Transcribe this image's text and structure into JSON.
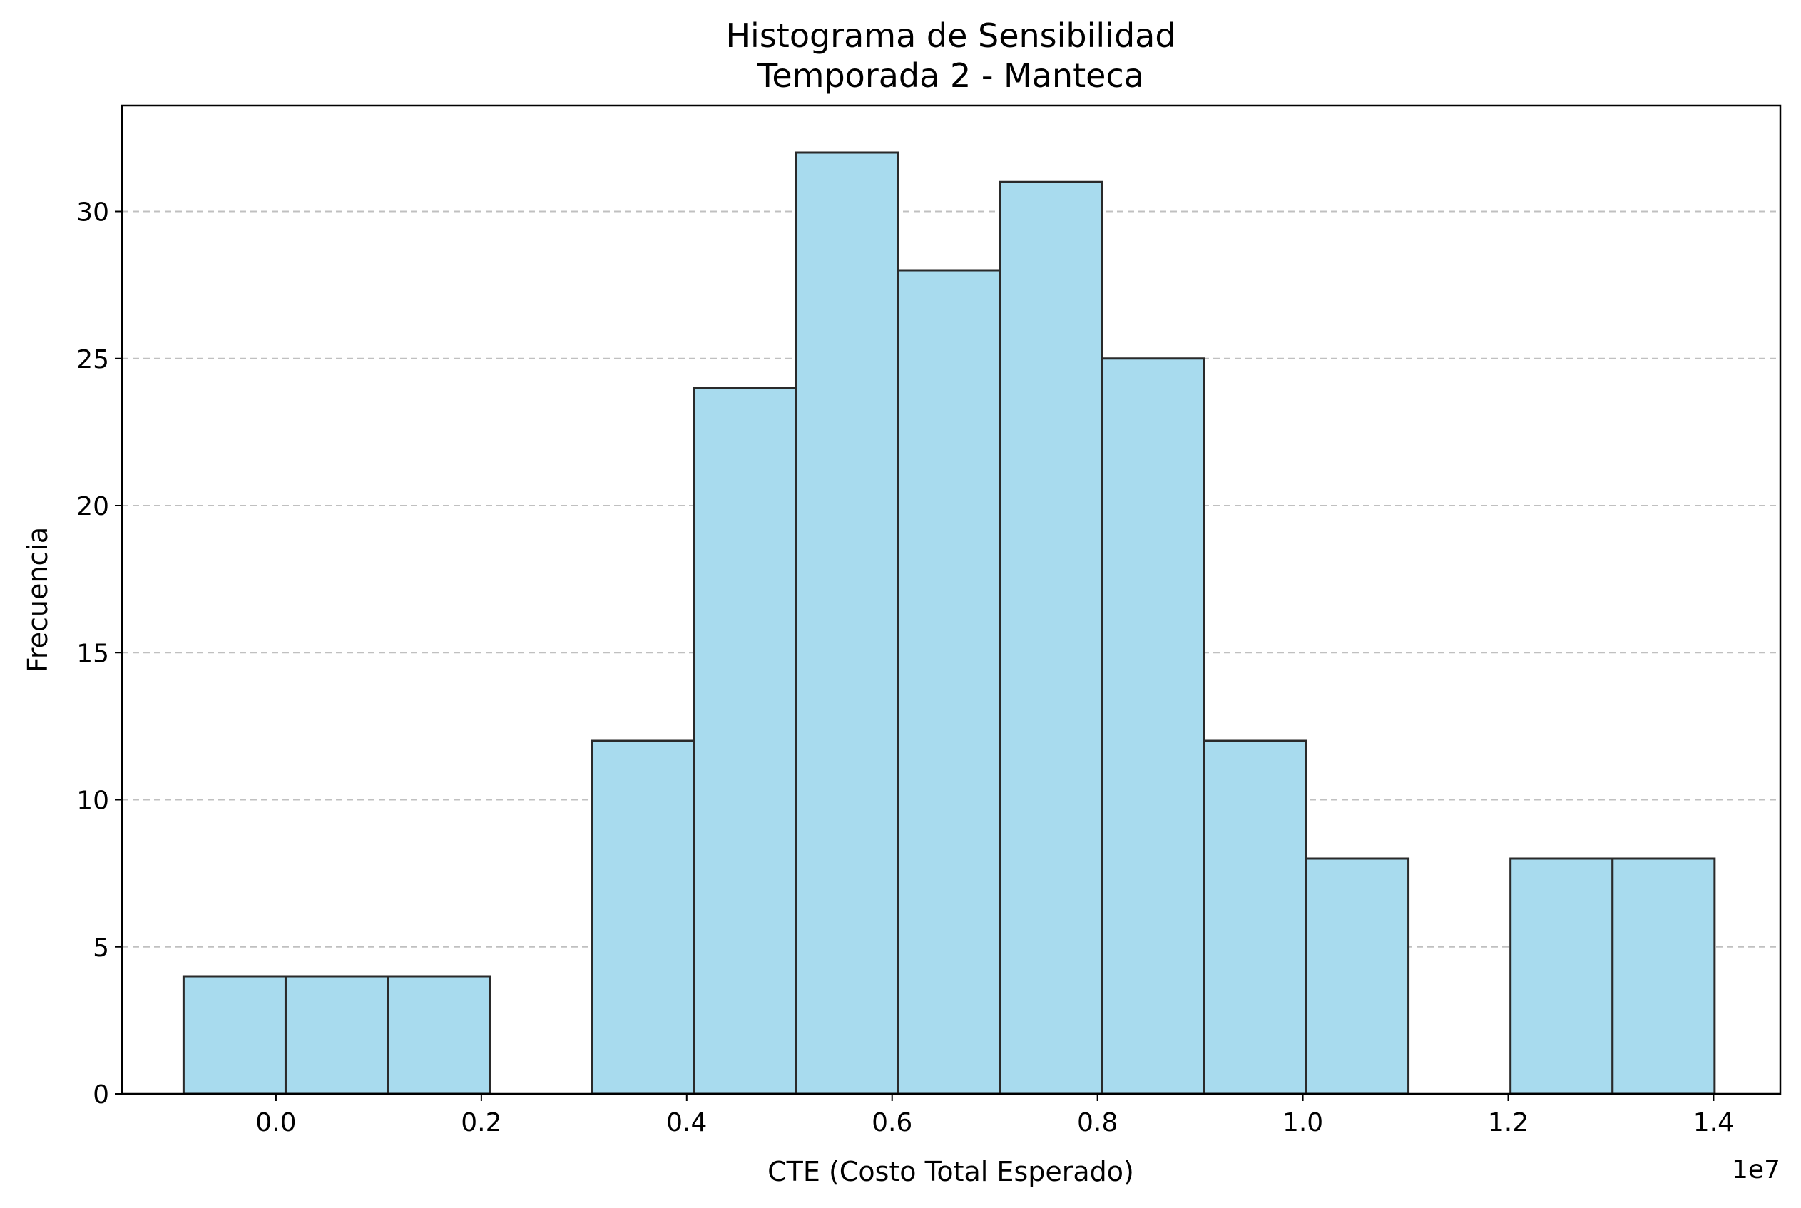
{
  "chart_data": {
    "type": "bar",
    "title": "Histograma de Sensibilidad",
    "subtitle": "Temporada 2 - Manteca",
    "xlabel": "CTE (Costo Total Esperado)",
    "ylabel": "Frecuencia",
    "x_offset_label": "1e7",
    "x_scale": 10000000,
    "xlim": [
      -0.15,
      1.465
    ],
    "ylim": [
      0,
      33.6
    ],
    "x_ticks": [
      0.0,
      0.2,
      0.4,
      0.6,
      0.8,
      1.0,
      1.2,
      1.4
    ],
    "x_tick_labels": [
      "0.0",
      "0.2",
      "0.4",
      "0.6",
      "0.8",
      "1.0",
      "1.2",
      "1.4"
    ],
    "y_ticks": [
      0,
      5,
      10,
      15,
      20,
      25,
      30
    ],
    "y_tick_labels": [
      "0",
      "5",
      "10",
      "15",
      "20",
      "25",
      "30"
    ],
    "grid": "y-dashed",
    "bin_edges": [
      -0.09,
      0.0094,
      0.1088,
      0.2082,
      0.3076,
      0.407,
      0.5064,
      0.6058,
      0.7052,
      0.8046,
      0.904,
      1.0034,
      1.1028,
      1.2022,
      1.3016,
      1.401
    ],
    "values": [
      4,
      4,
      4,
      0,
      12,
      24,
      32,
      28,
      31,
      25,
      12,
      8,
      0,
      8,
      8
    ],
    "colors": {
      "bar_fill": "#a8dbee",
      "bar_edge": "#2a2a2a",
      "grid": "#c0c0c0",
      "axis": "#000000"
    }
  }
}
